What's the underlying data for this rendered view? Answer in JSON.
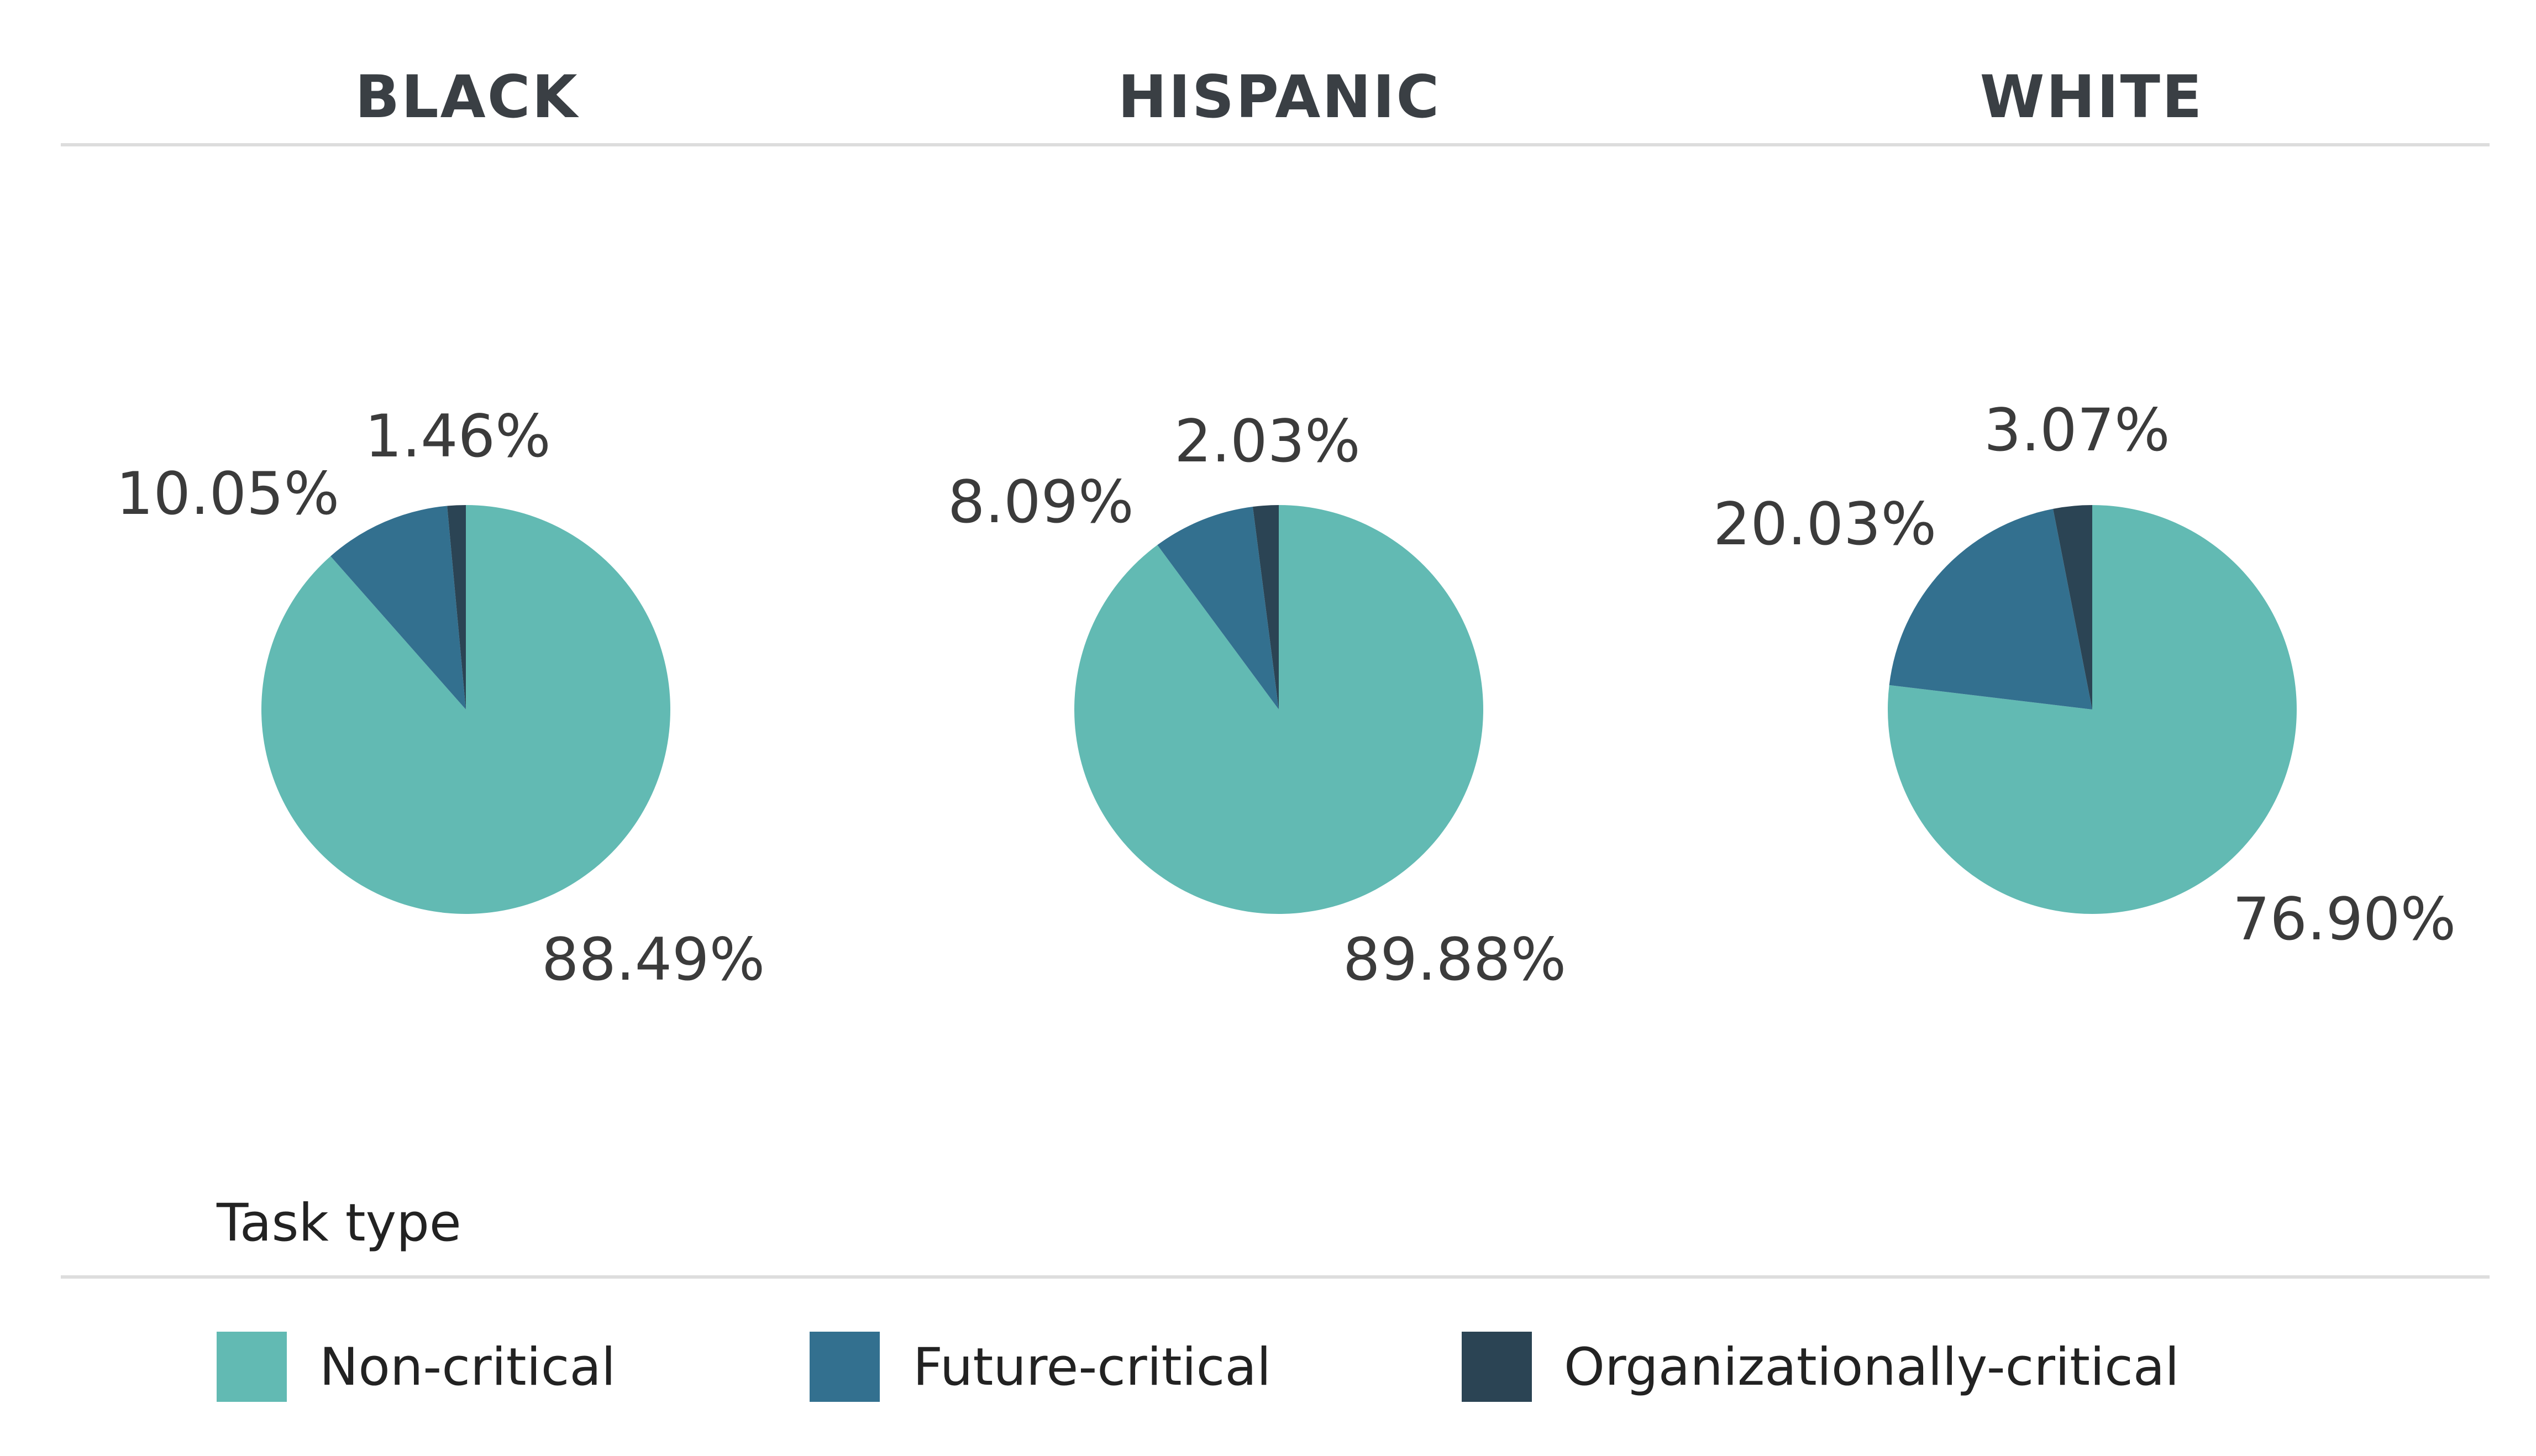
{
  "chart_data": {
    "type": "pie",
    "legend_title": "Task type",
    "legend_position": "bottom",
    "categories": [
      "Non-critical",
      "Future-critical",
      "Organizationally-critical"
    ],
    "colors": {
      "Non-critical": "#62bab3",
      "Future-critical": "#33708f",
      "Organizationally-critical": "#2b4454"
    },
    "panels": [
      {
        "title": "BLACK",
        "values": [
          88.49,
          10.05,
          1.46
        ],
        "labels": [
          "88.49%",
          "10.05%",
          "1.46%"
        ]
      },
      {
        "title": "HISPANIC",
        "values": [
          89.88,
          8.09,
          2.03
        ],
        "labels": [
          "89.88%",
          "8.09%",
          "2.03%"
        ]
      },
      {
        "title": "WHITE",
        "values": [
          76.9,
          20.03,
          3.07
        ],
        "labels": [
          "76.90%",
          "20.03%",
          "3.07%"
        ]
      }
    ]
  }
}
